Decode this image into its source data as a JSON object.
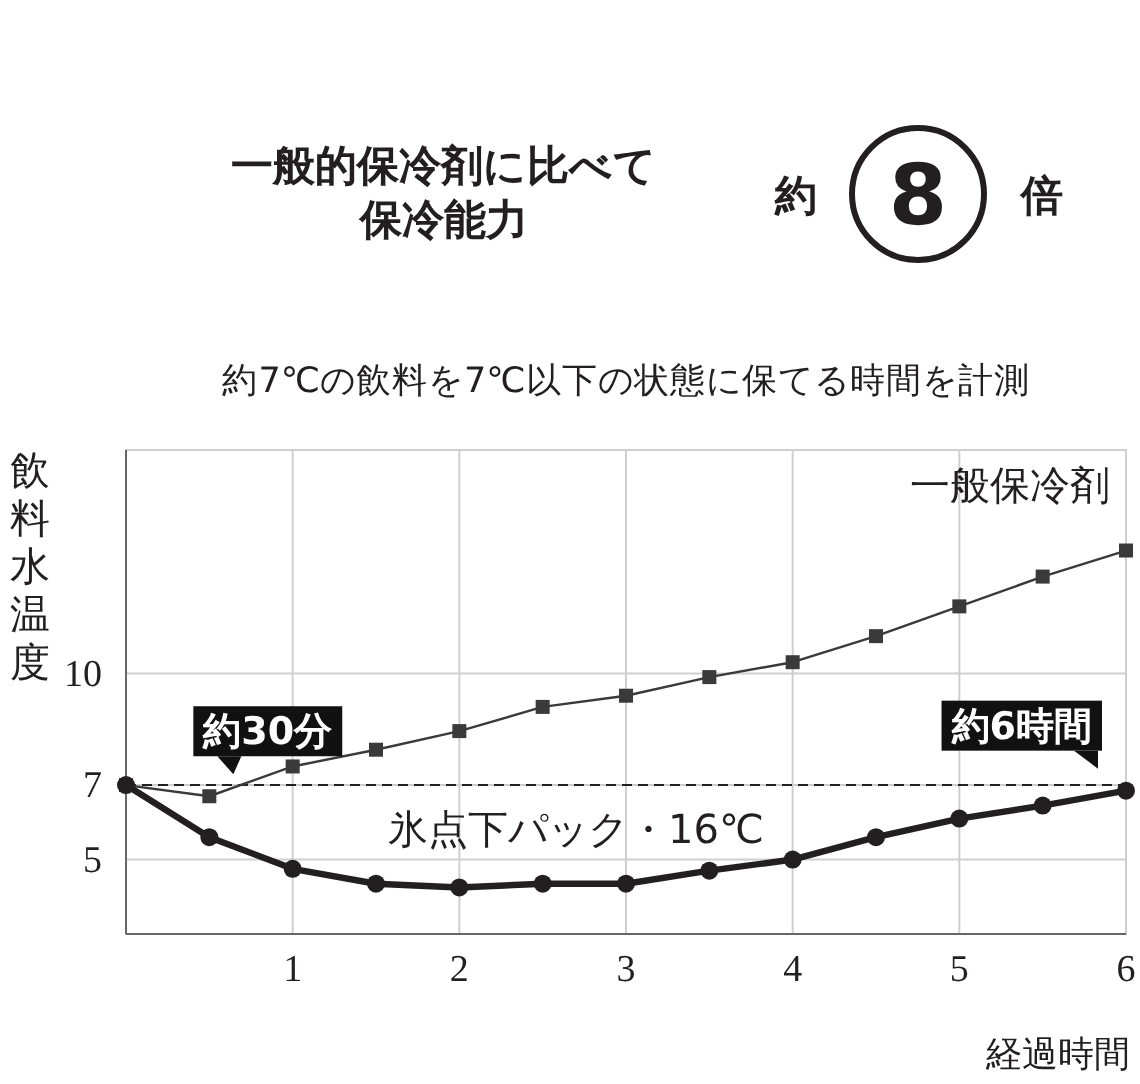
{
  "chart_data": {
    "type": "line",
    "title": "一般的保冷剤に比べて保冷能力",
    "subtitle": "約7℃の飲料を7℃以下の状態に保てる時間を計測",
    "ylabel": "飲料水温度",
    "xlabel": "経過時間",
    "x": [
      0,
      0.5,
      1,
      1.5,
      2,
      2.5,
      3,
      3.5,
      4,
      4.5,
      5,
      5.5,
      6
    ],
    "series": [
      {
        "name": "一般保冷剤",
        "color": "#3a3a3a",
        "marker": "square",
        "values": [
          7,
          6.7,
          7.5,
          7.95,
          8.45,
          9.1,
          9.4,
          9.9,
          10.3,
          11.0,
          11.8,
          12.6,
          13.3
        ]
      },
      {
        "name": "氷点下パック・16℃",
        "color": "#231f20",
        "marker": "circle",
        "values": [
          7,
          5.6,
          4.75,
          4.35,
          4.25,
          4.35,
          4.35,
          4.7,
          5.0,
          5.6,
          6.1,
          6.45,
          6.85
        ]
      }
    ],
    "xlim": [
      0,
      6
    ],
    "xticks": [
      1,
      2,
      3,
      4,
      5,
      6
    ],
    "ylim": [
      3,
      16
    ],
    "yticks": [
      5,
      7,
      10
    ],
    "grid": true,
    "legend": false,
    "line_style": "solid",
    "ref_lines": [
      {
        "axis": "y",
        "value": 7,
        "line_style": "dashed",
        "color": "#231f20"
      }
    ],
    "annotations": [
      {
        "text": "約30分",
        "x": 0.5,
        "y": 6.7
      },
      {
        "text": "約6時間",
        "x": 6,
        "y": 6.85
      },
      "約",
      "8",
      "倍"
    ]
  }
}
